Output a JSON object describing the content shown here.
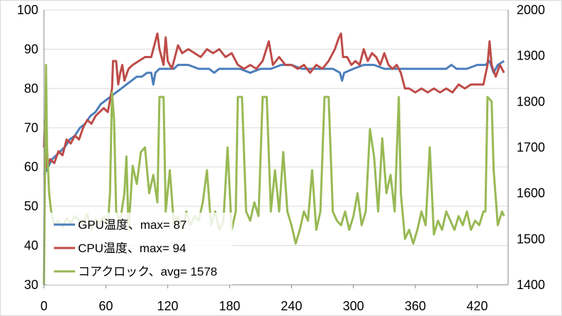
{
  "chart_data": {
    "type": "line",
    "title": "",
    "xlabel": "",
    "ylabel": "",
    "y2label": "",
    "xlim": [
      0,
      450
    ],
    "ylim": [
      30,
      100
    ],
    "y2lim": [
      1400,
      2000
    ],
    "x_ticks": [
      "0",
      "60",
      "120",
      "180",
      "240",
      "300",
      "360",
      "420"
    ],
    "y_ticks": [
      "30",
      "40",
      "50",
      "60",
      "70",
      "80",
      "90",
      "100"
    ],
    "y2_ticks": [
      "1400",
      "1500",
      "1600",
      "1700",
      "1800",
      "1900",
      "2000"
    ],
    "grid": "horizontal",
    "legend_position": "bottom-left",
    "series": [
      {
        "name": "GPU温度、max= 87",
        "axis": "left",
        "color": "#4a7ebb",
        "points": [
          [
            0,
            58
          ],
          [
            4,
            60
          ],
          [
            8,
            62
          ],
          [
            12,
            63
          ],
          [
            16,
            64
          ],
          [
            20,
            65
          ],
          [
            25,
            67
          ],
          [
            30,
            68
          ],
          [
            35,
            70
          ],
          [
            40,
            71
          ],
          [
            45,
            73
          ],
          [
            50,
            74
          ],
          [
            55,
            76
          ],
          [
            60,
            77
          ],
          [
            65,
            78
          ],
          [
            70,
            79
          ],
          [
            75,
            80
          ],
          [
            80,
            81
          ],
          [
            85,
            82
          ],
          [
            90,
            83
          ],
          [
            95,
            83
          ],
          [
            100,
            84
          ],
          [
            104,
            84
          ],
          [
            106,
            81
          ],
          [
            108,
            84
          ],
          [
            112,
            85
          ],
          [
            120,
            85
          ],
          [
            126,
            85
          ],
          [
            130,
            86
          ],
          [
            140,
            86
          ],
          [
            150,
            85
          ],
          [
            160,
            85
          ],
          [
            165,
            84
          ],
          [
            170,
            85
          ],
          [
            180,
            85
          ],
          [
            190,
            85
          ],
          [
            200,
            84
          ],
          [
            210,
            85
          ],
          [
            220,
            85
          ],
          [
            230,
            86
          ],
          [
            240,
            86
          ],
          [
            250,
            85
          ],
          [
            260,
            85
          ],
          [
            270,
            85
          ],
          [
            280,
            85
          ],
          [
            287,
            84
          ],
          [
            289,
            82
          ],
          [
            291,
            84
          ],
          [
            300,
            85
          ],
          [
            310,
            86
          ],
          [
            320,
            86
          ],
          [
            330,
            85
          ],
          [
            340,
            85
          ],
          [
            350,
            85
          ],
          [
            360,
            85
          ],
          [
            370,
            85
          ],
          [
            380,
            85
          ],
          [
            390,
            85
          ],
          [
            395,
            86
          ],
          [
            400,
            85
          ],
          [
            410,
            85
          ],
          [
            420,
            86
          ],
          [
            428,
            86
          ],
          [
            432,
            87
          ],
          [
            436,
            84
          ],
          [
            440,
            86
          ],
          [
            446,
            87
          ]
        ]
      },
      {
        "name": "CPU温度、max= 94",
        "axis": "left",
        "color": "#be4b48",
        "points": [
          [
            0,
            65
          ],
          [
            1,
            72
          ],
          [
            3,
            60
          ],
          [
            6,
            62
          ],
          [
            10,
            61
          ],
          [
            14,
            64
          ],
          [
            18,
            63
          ],
          [
            22,
            67
          ],
          [
            26,
            66
          ],
          [
            30,
            68
          ],
          [
            34,
            67
          ],
          [
            38,
            70
          ],
          [
            42,
            72
          ],
          [
            46,
            71
          ],
          [
            50,
            73
          ],
          [
            54,
            74
          ],
          [
            58,
            75
          ],
          [
            62,
            74
          ],
          [
            64,
            77
          ],
          [
            66,
            80
          ],
          [
            67,
            87
          ],
          [
            70,
            87
          ],
          [
            72,
            81
          ],
          [
            74,
            84
          ],
          [
            76,
            86
          ],
          [
            78,
            82
          ],
          [
            82,
            85
          ],
          [
            86,
            86
          ],
          [
            92,
            87
          ],
          [
            98,
            88
          ],
          [
            104,
            88
          ],
          [
            108,
            92
          ],
          [
            110,
            94
          ],
          [
            112,
            90
          ],
          [
            116,
            86
          ],
          [
            118,
            93
          ],
          [
            120,
            87
          ],
          [
            124,
            85
          ],
          [
            128,
            89
          ],
          [
            130,
            91
          ],
          [
            134,
            89
          ],
          [
            140,
            90
          ],
          [
            146,
            89
          ],
          [
            152,
            88
          ],
          [
            158,
            90
          ],
          [
            164,
            89
          ],
          [
            170,
            90
          ],
          [
            176,
            88
          ],
          [
            182,
            89
          ],
          [
            188,
            86
          ],
          [
            194,
            85
          ],
          [
            200,
            86
          ],
          [
            206,
            85
          ],
          [
            212,
            87
          ],
          [
            218,
            92
          ],
          [
            222,
            86
          ],
          [
            228,
            88
          ],
          [
            234,
            86
          ],
          [
            240,
            86
          ],
          [
            246,
            85
          ],
          [
            252,
            86
          ],
          [
            258,
            84
          ],
          [
            264,
            86
          ],
          [
            270,
            85
          ],
          [
            276,
            87
          ],
          [
            282,
            90
          ],
          [
            286,
            93
          ],
          [
            288,
            94
          ],
          [
            290,
            88
          ],
          [
            294,
            88
          ],
          [
            298,
            86
          ],
          [
            302,
            87
          ],
          [
            306,
            86
          ],
          [
            310,
            90
          ],
          [
            314,
            87
          ],
          [
            318,
            89
          ],
          [
            322,
            88
          ],
          [
            326,
            86
          ],
          [
            330,
            89
          ],
          [
            334,
            86
          ],
          [
            338,
            85
          ],
          [
            342,
            86
          ],
          [
            346,
            84
          ],
          [
            348,
            82
          ],
          [
            350,
            80
          ],
          [
            354,
            80
          ],
          [
            360,
            79
          ],
          [
            366,
            80
          ],
          [
            372,
            79
          ],
          [
            378,
            80
          ],
          [
            384,
            79
          ],
          [
            390,
            80
          ],
          [
            396,
            79
          ],
          [
            402,
            81
          ],
          [
            408,
            80
          ],
          [
            414,
            81
          ],
          [
            420,
            81
          ],
          [
            426,
            81
          ],
          [
            430,
            86
          ],
          [
            432,
            92
          ],
          [
            434,
            86
          ],
          [
            438,
            83
          ],
          [
            442,
            86
          ],
          [
            446,
            84
          ]
        ]
      },
      {
        "name": "コアクロック、avg= 1578",
        "axis": "right",
        "color": "#98b954",
        "points": [
          [
            0,
            1400
          ],
          [
            1,
            1650
          ],
          [
            2,
            1880
          ],
          [
            3,
            1700
          ],
          [
            5,
            1600
          ],
          [
            7,
            1560
          ],
          [
            10,
            1530
          ],
          [
            14,
            1540
          ],
          [
            18,
            1525
          ],
          [
            22,
            1545
          ],
          [
            26,
            1535
          ],
          [
            30,
            1550
          ],
          [
            34,
            1540
          ],
          [
            38,
            1530
          ],
          [
            42,
            1555
          ],
          [
            46,
            1520
          ],
          [
            50,
            1545
          ],
          [
            54,
            1535
          ],
          [
            58,
            1550
          ],
          [
            62,
            1530
          ],
          [
            64,
            1600
          ],
          [
            66,
            1820
          ],
          [
            68,
            1760
          ],
          [
            70,
            1560
          ],
          [
            74,
            1540
          ],
          [
            78,
            1600
          ],
          [
            80,
            1680
          ],
          [
            82,
            1520
          ],
          [
            86,
            1660
          ],
          [
            90,
            1620
          ],
          [
            94,
            1690
          ],
          [
            98,
            1700
          ],
          [
            102,
            1600
          ],
          [
            106,
            1640
          ],
          [
            110,
            1580
          ],
          [
            112,
            1810
          ],
          [
            116,
            1810
          ],
          [
            118,
            1560
          ],
          [
            122,
            1650
          ],
          [
            126,
            1530
          ],
          [
            130,
            1550
          ],
          [
            134,
            1520
          ],
          [
            138,
            1560
          ],
          [
            142,
            1530
          ],
          [
            146,
            1550
          ],
          [
            150,
            1540
          ],
          [
            154,
            1580
          ],
          [
            158,
            1650
          ],
          [
            162,
            1530
          ],
          [
            166,
            1560
          ],
          [
            170,
            1520
          ],
          [
            174,
            1540
          ],
          [
            178,
            1700
          ],
          [
            182,
            1520
          ],
          [
            186,
            1560
          ],
          [
            188,
            1810
          ],
          [
            192,
            1810
          ],
          [
            196,
            1560
          ],
          [
            200,
            1540
          ],
          [
            204,
            1580
          ],
          [
            208,
            1550
          ],
          [
            212,
            1810
          ],
          [
            216,
            1810
          ],
          [
            220,
            1560
          ],
          [
            224,
            1650
          ],
          [
            228,
            1560
          ],
          [
            232,
            1690
          ],
          [
            236,
            1560
          ],
          [
            240,
            1530
          ],
          [
            244,
            1490
          ],
          [
            248,
            1520
          ],
          [
            252,
            1560
          ],
          [
            256,
            1540
          ],
          [
            260,
            1650
          ],
          [
            264,
            1520
          ],
          [
            268,
            1560
          ],
          [
            272,
            1810
          ],
          [
            276,
            1810
          ],
          [
            280,
            1560
          ],
          [
            284,
            1540
          ],
          [
            288,
            1530
          ],
          [
            292,
            1560
          ],
          [
            296,
            1520
          ],
          [
            300,
            1550
          ],
          [
            304,
            1600
          ],
          [
            308,
            1530
          ],
          [
            312,
            1560
          ],
          [
            316,
            1740
          ],
          [
            320,
            1680
          ],
          [
            324,
            1560
          ],
          [
            328,
            1720
          ],
          [
            332,
            1600
          ],
          [
            336,
            1640
          ],
          [
            340,
            1560
          ],
          [
            344,
            1810
          ],
          [
            346,
            1600
          ],
          [
            350,
            1500
          ],
          [
            354,
            1520
          ],
          [
            358,
            1490
          ],
          [
            362,
            1520
          ],
          [
            366,
            1560
          ],
          [
            370,
            1530
          ],
          [
            374,
            1700
          ],
          [
            378,
            1510
          ],
          [
            382,
            1540
          ],
          [
            386,
            1520
          ],
          [
            390,
            1560
          ],
          [
            394,
            1540
          ],
          [
            398,
            1520
          ],
          [
            402,
            1550
          ],
          [
            406,
            1530
          ],
          [
            410,
            1560
          ],
          [
            414,
            1520
          ],
          [
            418,
            1540
          ],
          [
            422,
            1530
          ],
          [
            426,
            1560
          ],
          [
            428,
            1560
          ],
          [
            430,
            1810
          ],
          [
            434,
            1800
          ],
          [
            436,
            1650
          ],
          [
            440,
            1530
          ],
          [
            444,
            1560
          ],
          [
            446,
            1550
          ]
        ]
      }
    ]
  }
}
